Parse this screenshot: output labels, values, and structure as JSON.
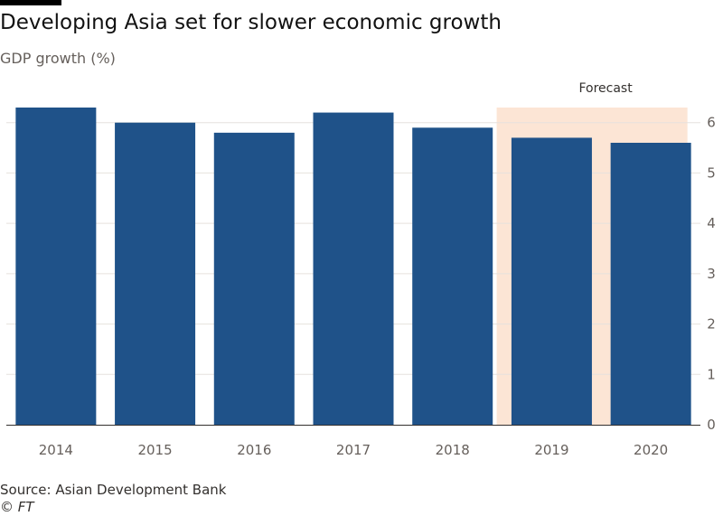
{
  "header": {
    "title": "Developing Asia set for slower economic growth",
    "subtitle": "GDP growth (%)"
  },
  "footer": {
    "source": "Source: Asian Development Bank",
    "credit": "© FT"
  },
  "chart_data": {
    "type": "bar",
    "title": "Developing Asia set for slower economic growth",
    "ylabel": "GDP growth (%)",
    "categories": [
      "2014",
      "2015",
      "2016",
      "2017",
      "2018",
      "2019",
      "2020"
    ],
    "values": [
      6.3,
      6.0,
      5.8,
      6.2,
      5.9,
      5.7,
      5.6
    ],
    "ylim": [
      0,
      6.3
    ],
    "yticks": [
      0,
      1,
      2,
      3,
      4,
      5,
      6
    ],
    "y_axis_side": "right",
    "grid": true,
    "forecast": {
      "label": "Forecast",
      "categories": [
        "2019",
        "2020"
      ]
    },
    "colors": {
      "bar": "#1f5289",
      "forecast_band": "#fce5d5",
      "grid": "#e6e2dd",
      "baseline": "#33302e"
    }
  }
}
